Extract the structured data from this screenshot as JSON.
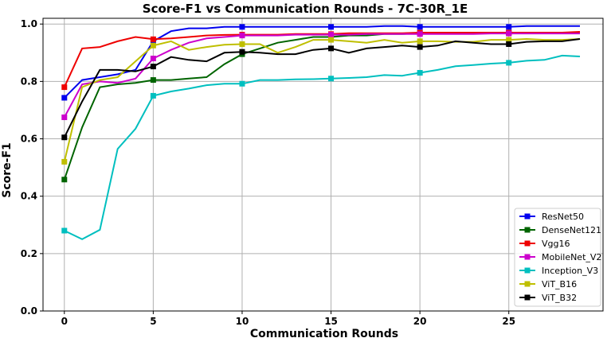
{
  "chart_data": {
    "type": "line",
    "title": "Score-F1 vs Communication Rounds - 7C-30R_1E",
    "xlabel": "Communication Rounds",
    "ylabel": "Score-F1",
    "xlim": [
      -1.2,
      30.3
    ],
    "ylim": [
      0.0,
      1.02
    ],
    "xticks": [
      0,
      5,
      10,
      15,
      20,
      25
    ],
    "yticks": [
      0.0,
      0.2,
      0.4,
      0.6,
      0.8,
      1.0
    ],
    "grid": true,
    "legend_position": "lower-right",
    "marker_every": 5,
    "x": [
      0,
      1,
      2,
      3,
      4,
      5,
      6,
      7,
      8,
      9,
      10,
      11,
      12,
      13,
      14,
      15,
      16,
      17,
      18,
      19,
      20,
      21,
      22,
      23,
      24,
      25,
      26,
      27,
      28,
      29
    ],
    "series": [
      {
        "name": "ResNet50",
        "color": "#0000ee",
        "values": [
          0.743,
          0.805,
          0.815,
          0.825,
          0.84,
          0.94,
          0.975,
          0.985,
          0.985,
          0.99,
          0.99,
          0.99,
          0.99,
          0.99,
          0.99,
          0.99,
          0.99,
          0.99,
          0.993,
          0.993,
          0.99,
          0.99,
          0.99,
          0.99,
          0.99,
          0.99,
          0.993,
          0.993,
          0.993,
          0.993
        ]
      },
      {
        "name": "DenseNet121",
        "color": "#006400",
        "values": [
          0.458,
          0.64,
          0.78,
          0.79,
          0.795,
          0.805,
          0.805,
          0.81,
          0.815,
          0.86,
          0.895,
          0.915,
          0.935,
          0.945,
          0.955,
          0.955,
          0.96,
          0.96,
          0.965,
          0.965,
          0.968,
          0.97,
          0.97,
          0.97,
          0.97,
          0.97,
          0.97,
          0.97,
          0.97,
          0.97
        ]
      },
      {
        "name": "Vgg16",
        "color": "#ee0000",
        "values": [
          0.78,
          0.915,
          0.92,
          0.94,
          0.955,
          0.947,
          0.95,
          0.955,
          0.96,
          0.962,
          0.963,
          0.963,
          0.963,
          0.965,
          0.965,
          0.965,
          0.968,
          0.968,
          0.968,
          0.968,
          0.97,
          0.97,
          0.97,
          0.97,
          0.97,
          0.97,
          0.97,
          0.97,
          0.97,
          0.973
        ]
      },
      {
        "name": "MobileNet_V2",
        "color": "#cc00cc",
        "values": [
          0.675,
          0.79,
          0.8,
          0.795,
          0.81,
          0.88,
          0.91,
          0.935,
          0.95,
          0.955,
          0.96,
          0.96,
          0.96,
          0.963,
          0.963,
          0.963,
          0.963,
          0.965,
          0.965,
          0.965,
          0.965,
          0.965,
          0.965,
          0.965,
          0.967,
          0.967,
          0.967,
          0.967,
          0.967,
          0.967
        ]
      },
      {
        "name": "Inception_V3",
        "color": "#00bfbf",
        "values": [
          0.28,
          0.25,
          0.283,
          0.565,
          0.635,
          0.75,
          0.765,
          0.775,
          0.787,
          0.792,
          0.792,
          0.805,
          0.805,
          0.807,
          0.808,
          0.81,
          0.812,
          0.815,
          0.822,
          0.82,
          0.83,
          0.84,
          0.853,
          0.857,
          0.862,
          0.865,
          0.872,
          0.875,
          0.89,
          0.887
        ]
      },
      {
        "name": "ViT_B16",
        "color": "#bfbf00",
        "values": [
          0.52,
          0.78,
          0.805,
          0.815,
          0.87,
          0.925,
          0.94,
          0.91,
          0.92,
          0.928,
          0.93,
          0.93,
          0.9,
          0.92,
          0.945,
          0.945,
          0.94,
          0.935,
          0.945,
          0.935,
          0.94,
          0.94,
          0.938,
          0.938,
          0.945,
          0.945,
          0.948,
          0.945,
          0.945,
          0.948
        ]
      },
      {
        "name": "ViT_B32",
        "color": "#000000",
        "values": [
          0.605,
          0.73,
          0.84,
          0.84,
          0.835,
          0.852,
          0.885,
          0.875,
          0.87,
          0.9,
          0.903,
          0.9,
          0.895,
          0.895,
          0.91,
          0.915,
          0.9,
          0.915,
          0.92,
          0.925,
          0.92,
          0.925,
          0.94,
          0.935,
          0.93,
          0.93,
          0.938,
          0.94,
          0.94,
          0.948
        ]
      }
    ]
  }
}
